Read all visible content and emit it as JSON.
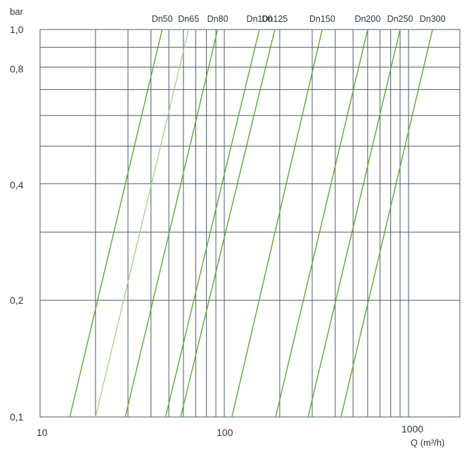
{
  "chart_data": {
    "type": "line",
    "x_scale": "log",
    "y_scale": "log",
    "xlim": [
      10,
      1700
    ],
    "ylim": [
      0.1,
      1.0
    ],
    "ylabel": "bar",
    "xlabel": "Q (m³/h)",
    "x_ticks": [
      {
        "v": 10,
        "label": "10"
      },
      {
        "v": 100,
        "label": "100"
      },
      {
        "v": 1000,
        "label": "1000"
      }
    ],
    "y_ticks": [
      {
        "v": 0.1,
        "label": "0,1"
      },
      {
        "v": 0.2,
        "label": "0,2"
      },
      {
        "v": 0.4,
        "label": "0,4"
      },
      {
        "v": 0.8,
        "label": "0,8"
      },
      {
        "v": 1.0,
        "label": "1,0"
      }
    ],
    "grid": true,
    "colors": {
      "series": "#5aa832",
      "series_light": "#a9d08e",
      "grid": "#4a5866",
      "text": "#2b3640"
    },
    "series": [
      {
        "name": "Dn50",
        "q_at_0_1_bar": 14.5,
        "q_at_1_0_bar": 46,
        "light": false
      },
      {
        "name": "Dn65",
        "q_at_0_1_bar": 20,
        "q_at_1_0_bar": 64,
        "light": true
      },
      {
        "name": "Dn80",
        "q_at_0_1_bar": 29,
        "q_at_1_0_bar": 92,
        "light": false
      },
      {
        "name": "Dn100",
        "q_at_0_1_bar": 48,
        "q_at_1_0_bar": 155,
        "light": false
      },
      {
        "name": "Dn125",
        "q_at_0_1_bar": 58,
        "q_at_1_0_bar": 188,
        "light": false
      },
      {
        "name": "Dn150",
        "q_at_0_1_bar": 110,
        "q_at_1_0_bar": 340,
        "light": false
      },
      {
        "name": "Dn200",
        "q_at_0_1_bar": 190,
        "q_at_1_0_bar": 600,
        "light": false
      },
      {
        "name": "Dn250",
        "q_at_0_1_bar": 285,
        "q_at_1_0_bar": 900,
        "light": false
      },
      {
        "name": "Dn300",
        "q_at_0_1_bar": 430,
        "q_at_1_0_bar": 1350,
        "light": false
      }
    ]
  }
}
